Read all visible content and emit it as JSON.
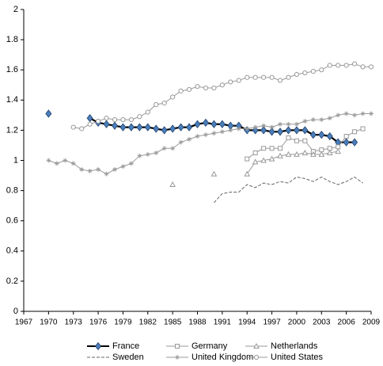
{
  "chart_data": {
    "type": "line",
    "x": [
      1970,
      1971,
      1972,
      1973,
      1974,
      1975,
      1976,
      1977,
      1978,
      1979,
      1980,
      1981,
      1982,
      1983,
      1984,
      1985,
      1986,
      1987,
      1988,
      1989,
      1990,
      1991,
      1992,
      1993,
      1994,
      1995,
      1996,
      1997,
      1998,
      1999,
      2000,
      2001,
      2002,
      2003,
      2004,
      2005,
      2006,
      2007,
      2008,
      2009
    ],
    "xlim": [
      1967,
      2009
    ],
    "xticks": [
      1967,
      1970,
      1973,
      1976,
      1979,
      1982,
      1985,
      1988,
      1991,
      1994,
      1997,
      2000,
      2003,
      2006,
      2009
    ],
    "ylim": [
      0,
      2
    ],
    "yticks": [
      0,
      0.2,
      0.4,
      0.6,
      0.8,
      1,
      1.2,
      1.4,
      1.6,
      1.8,
      2
    ],
    "legend": "bottom",
    "series": [
      {
        "name": "France",
        "color": "#4a7ebb",
        "marker": "diamond",
        "values": [
          1.31,
          null,
          null,
          null,
          null,
          1.28,
          1.25,
          1.24,
          1.23,
          1.22,
          1.22,
          1.22,
          1.22,
          1.21,
          1.2,
          1.21,
          1.22,
          1.22,
          1.24,
          1.25,
          1.24,
          1.24,
          1.23,
          1.23,
          1.2,
          1.2,
          1.2,
          1.19,
          1.19,
          1.2,
          1.2,
          1.2,
          1.17,
          1.17,
          1.16,
          1.12,
          1.12,
          1.12,
          null,
          null
        ]
      },
      {
        "name": "Germany",
        "color": "#999999",
        "marker": "square",
        "values": [
          null,
          null,
          null,
          null,
          null,
          null,
          null,
          null,
          null,
          null,
          null,
          null,
          null,
          null,
          null,
          null,
          null,
          null,
          null,
          null,
          null,
          null,
          null,
          null,
          1.01,
          1.05,
          1.08,
          1.08,
          1.08,
          1.15,
          1.13,
          1.13,
          1.06,
          1.07,
          1.08,
          1.09,
          1.16,
          1.19,
          1.21,
          null
        ]
      },
      {
        "name": "Netherlands",
        "color": "#999999",
        "marker": "triangle",
        "values": [
          null,
          null,
          null,
          null,
          null,
          null,
          null,
          null,
          null,
          null,
          null,
          null,
          null,
          null,
          null,
          0.84,
          null,
          null,
          null,
          null,
          0.91,
          null,
          null,
          null,
          0.91,
          0.99,
          1.0,
          1.01,
          1.03,
          1.04,
          1.04,
          1.05,
          1.04,
          1.04,
          1.05,
          1.06,
          null,
          null,
          null,
          null
        ]
      },
      {
        "name": "Sweden",
        "color": "#666666",
        "marker": "none",
        "dash": true,
        "values": [
          null,
          null,
          null,
          null,
          null,
          null,
          null,
          null,
          null,
          null,
          null,
          null,
          null,
          null,
          null,
          null,
          null,
          null,
          null,
          null,
          0.72,
          0.78,
          0.79,
          0.79,
          0.84,
          0.82,
          0.85,
          0.84,
          0.86,
          0.85,
          0.89,
          0.88,
          0.86,
          0.89,
          0.86,
          0.84,
          0.86,
          0.89,
          0.85,
          null
        ]
      },
      {
        "name": "United Kingdom",
        "color": "#999999",
        "marker": "star",
        "values": [
          1.0,
          0.98,
          1.0,
          0.98,
          0.94,
          0.93,
          0.94,
          0.91,
          0.94,
          0.96,
          0.98,
          1.03,
          1.04,
          1.05,
          1.08,
          1.08,
          1.12,
          1.14,
          1.16,
          1.17,
          1.18,
          1.19,
          1.2,
          1.21,
          1.21,
          1.22,
          1.23,
          1.22,
          1.24,
          1.24,
          1.24,
          1.26,
          1.27,
          1.27,
          1.28,
          1.3,
          1.31,
          1.3,
          1.31,
          1.31
        ]
      },
      {
        "name": "United States",
        "color": "#999999",
        "marker": "circle",
        "values": [
          null,
          null,
          null,
          1.22,
          1.21,
          1.24,
          1.26,
          1.28,
          1.27,
          1.27,
          1.27,
          1.29,
          1.32,
          1.37,
          1.38,
          1.42,
          1.46,
          1.47,
          1.49,
          1.48,
          1.48,
          1.5,
          1.52,
          1.53,
          1.55,
          1.55,
          1.55,
          1.55,
          1.53,
          1.55,
          1.57,
          1.58,
          1.59,
          1.6,
          1.63,
          1.63,
          1.63,
          1.64,
          1.62,
          1.62
        ]
      }
    ]
  }
}
